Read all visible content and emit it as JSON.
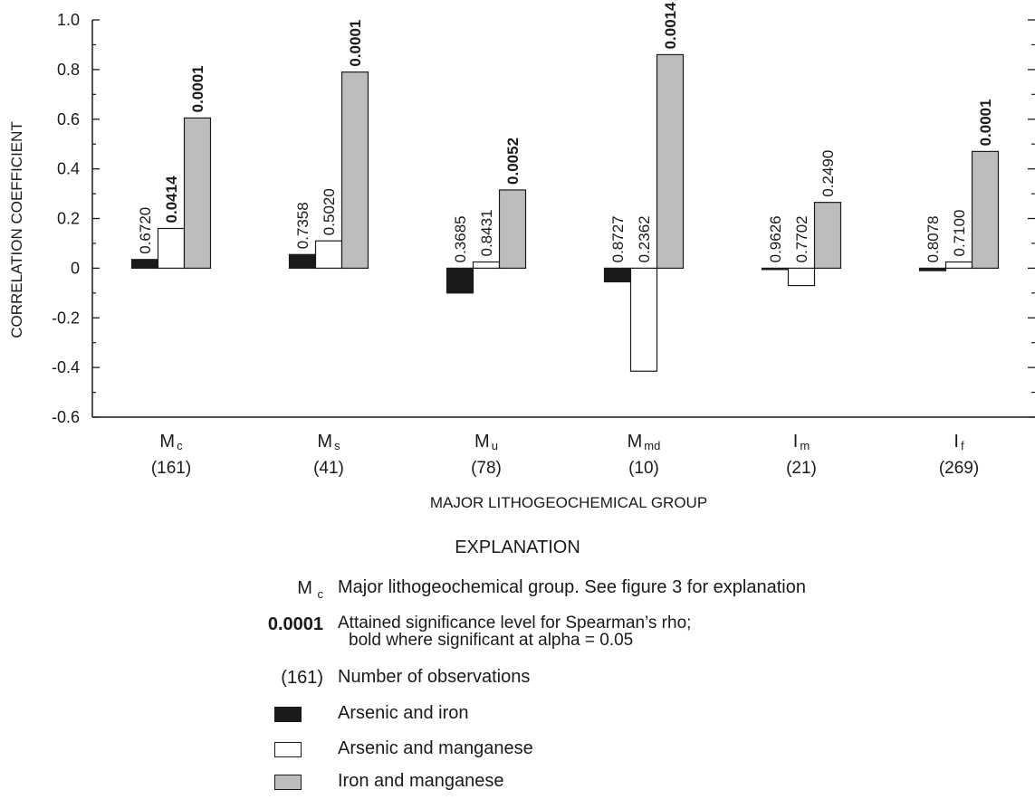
{
  "chart_data": {
    "type": "bar",
    "ylabel": "CORRELATION COEFFICIENT",
    "xlabel": "MAJOR LITHOGEOCHEMICAL GROUP",
    "ylim": [
      -0.6,
      1.0
    ],
    "yticks": [
      "1.0",
      "0.8",
      "0.6",
      "0.4",
      "0.2",
      "0",
      "-0.2",
      "-0.4",
      "-0.6"
    ],
    "ytick_values": [
      1.0,
      0.8,
      0.6,
      0.4,
      0.2,
      0,
      -0.2,
      -0.4,
      -0.6
    ],
    "categories": [
      {
        "main": "M",
        "sub": "c",
        "count": "(161)"
      },
      {
        "main": "M",
        "sub": "s",
        "count": "(41)"
      },
      {
        "main": "M",
        "sub": "u",
        "count": "(78)"
      },
      {
        "main": "M",
        "sub": "md",
        "count": "(10)"
      },
      {
        "main": "I",
        "sub": "m",
        "count": "(21)"
      },
      {
        "main": "I",
        "sub": "f",
        "count": "(269)"
      }
    ],
    "series": [
      {
        "name": "Arsenic and iron",
        "color": "#1a1a1a",
        "values": [
          0.035,
          0.055,
          -0.1,
          -0.055,
          -0.005,
          -0.01
        ],
        "labels": [
          "0.6720",
          "0.7358",
          "0.3685",
          "0.8727",
          "0.9626",
          "0.8078"
        ],
        "bold": [
          false,
          false,
          false,
          false,
          false,
          false
        ]
      },
      {
        "name": "Arsenic and manganese",
        "color": "#ffffff",
        "values": [
          0.16,
          0.11,
          0.025,
          -0.415,
          -0.07,
          0.025
        ],
        "labels": [
          "0.0414",
          "0.5020",
          "0.8431",
          "0.2362",
          "0.7702",
          "0.7100"
        ],
        "bold": [
          true,
          false,
          false,
          false,
          false,
          false
        ]
      },
      {
        "name": "Iron and manganese",
        "color": "#bdbdbd",
        "values": [
          0.605,
          0.79,
          0.315,
          0.86,
          0.265,
          0.47
        ],
        "labels": [
          "0.0001",
          "0.0001",
          "0.0052",
          "0.0014",
          "0.2490",
          "0.0001"
        ],
        "bold": [
          true,
          true,
          true,
          true,
          false,
          true
        ]
      }
    ],
    "grid": false
  },
  "explanation": {
    "title": "EXPLANATION",
    "group_key": {
      "main": "M",
      "sub": "c",
      "text": "Major lithogeochemical group. See figure 3 for explanation"
    },
    "significance_key": {
      "key": "0.0001",
      "line1": "Attained significance level for Spearman’s rho;",
      "line2": "bold where significant at alpha = 0.05"
    },
    "count_key": {
      "key": "(161)",
      "text": "Number of observations"
    },
    "legend": [
      {
        "label": "Arsenic and iron",
        "color": "#1a1a1a"
      },
      {
        "label": "Arsenic and manganese",
        "color": "#ffffff"
      },
      {
        "label": "Iron and manganese",
        "color": "#bdbdbd"
      }
    ]
  }
}
